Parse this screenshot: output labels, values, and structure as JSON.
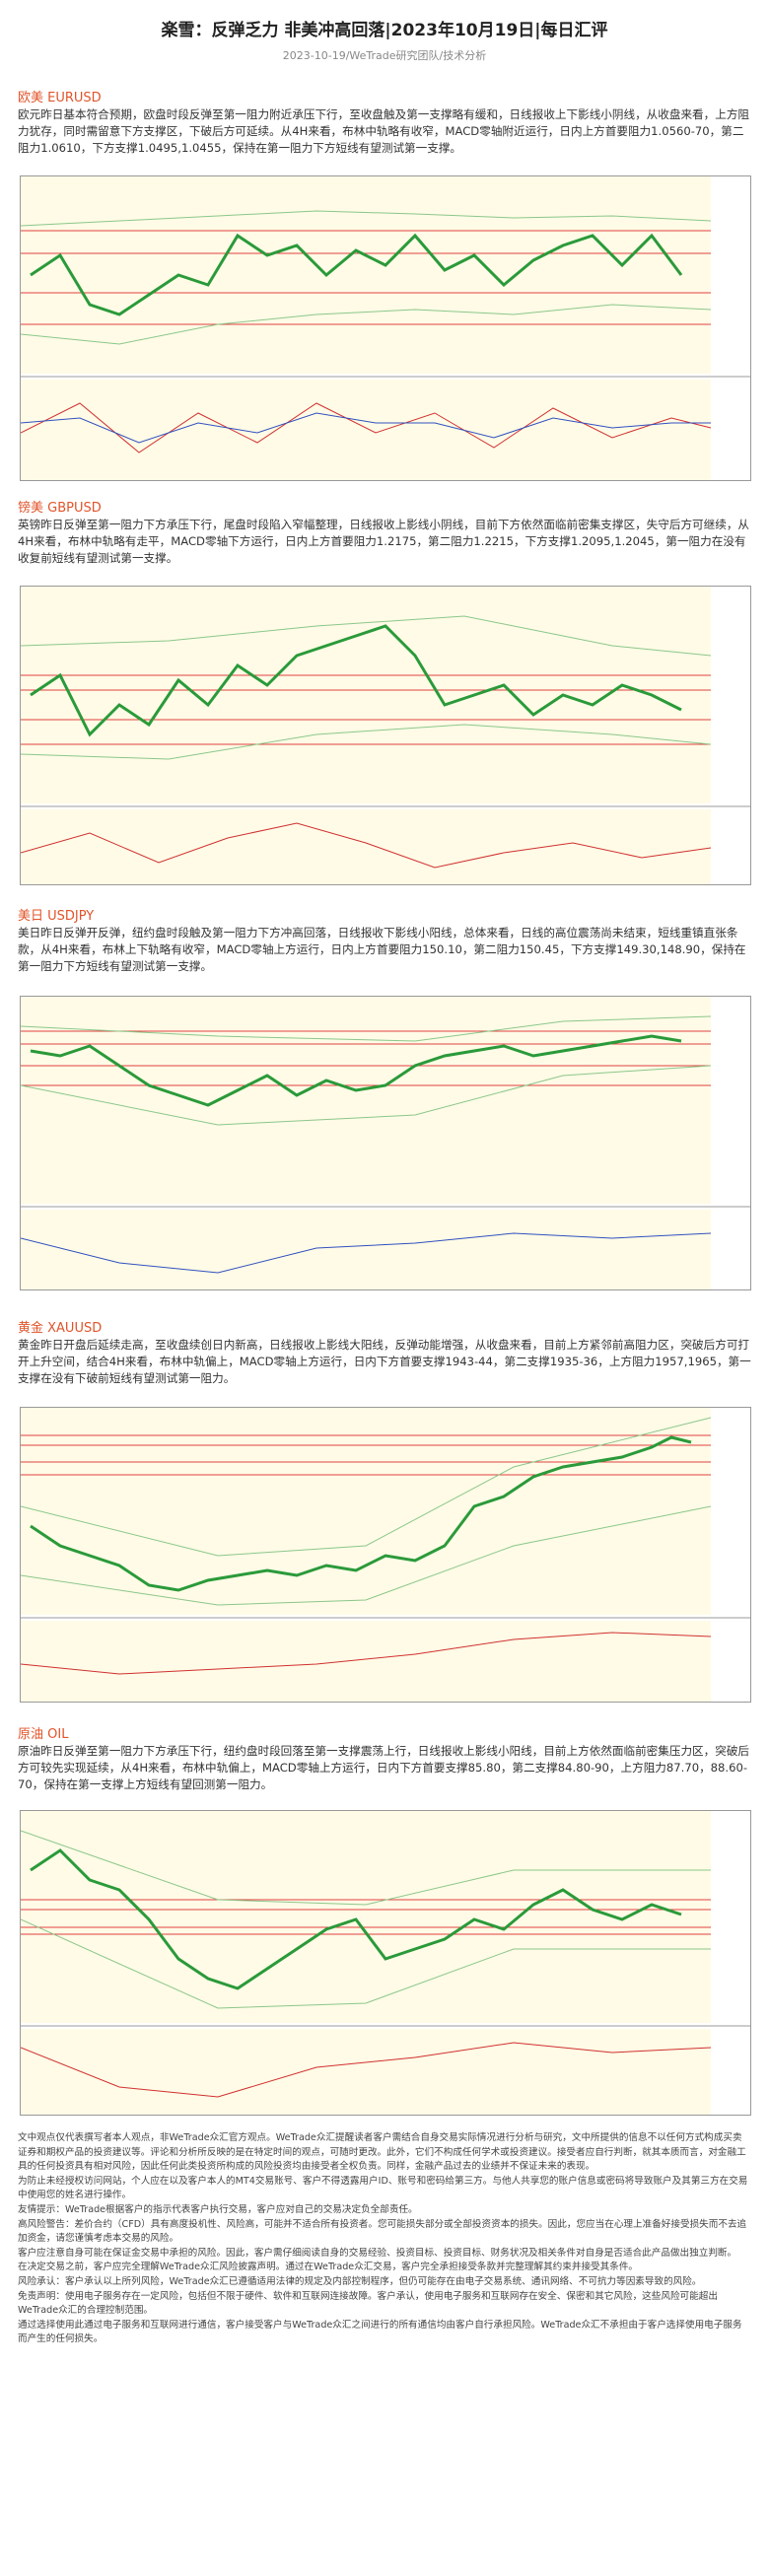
{
  "header": {
    "title": "楽雪：反弹乏力 非美冲高回落|2023年10月19日|每日汇评",
    "subtitle": "2023-10-19/WeTrade研究团队/技术分析"
  },
  "sections": [
    {
      "heading": "欧美 EURUSD",
      "body": "欧元昨日基本符合预期，欧盘时段反弹至第一阻力附近承压下行，至收盘触及第一支撑略有缓和，日线报收上下影线小阴线，从收盘来看，上方阻力犹存，同时需留意下方支撑区，下破后方可延续。从4H来看，布林中轨略有收窄，MACD零轴附近运行，日内上方首要阻力1.0560-70，第二阻力1.0610，下方支撑1.0495,1.0455，保持在第一阻力下方短线有望测试第一支撑。"
    },
    {
      "heading": "镑美 GBPUSD",
      "body": "英镑昨日反弹至第一阻力下方承压下行，尾盘时段陷入窄幅整理，日线报收上影线小阴线，目前下方依然面临前密集支撑区，失守后方可继续，从4H来看，布林中轨略有走平，MACD零轴下方运行，日内上方首要阻力1.2175，第二阻力1.2215，下方支撑1.2095,1.2045，第一阻力在没有收复前短线有望测试第一支撑。"
    },
    {
      "heading": "美日 USDJPY",
      "body": "美日昨日反弹开反弹，纽约盘时段触及第一阻力下方冲高回落，日线报收下影线小阳线，总体来看，日线的高位震荡尚未结束，短线重镇直张条款，从4H来看，布林上下轨略有收窄，MACD零轴上方运行，日内上方首要阻力150.10，第二阻力150.45，下方支撑149.30,148.90，保持在第一阻力下方短线有望测试第一支撑。"
    },
    {
      "heading": "黄金 XAUUSD",
      "body": "黄金昨日开盘后延续走高，至收盘续创日内新高，日线报收上影线大阳线，反弹动能增强，从收盘来看，目前上方紧邻前高阻力区，突破后方可打开上升空间，结合4H来看，布林中轨偏上，MACD零轴上方运行，日内下方首要支撑1943-44，第二支撑1935-36，上方阻力1957,1965，第一支撑在没有下破前短线有望测试第一阻力。"
    },
    {
      "heading": "原油 OIL",
      "body": "原油昨日反弹至第一阻力下方承压下行，纽约盘时段回落至第一支撑震荡上行，日线报收上影线小阳线，目前上方依然面临前密集压力区，突破后方可较先实现延续，从4H来看，布林中轨偏上，MACD零轴上方运行，日内下方首要支撑85.80，第二支撑84.80-90，上方阻力87.70，88.60-70，保持在第一支撑上方短线有望回测第一阻力。"
    }
  ],
  "disclaimer": [
    "文中观点仅代表撰写者本人观点，非WeTrade众汇官方观点。WeTrade众汇提醒读者客户需结合自身交易实际情况进行分析与研究，文中所提供的信息不以任何方式构成买卖证券和期权产品的投资建议等。评论和分析所反映的是在特定时间的观点，可随时更改。此外，它们不构成任何学术或投资建议。接受者应自行判断，就其本质而言，对金融工具的任何投资具有相对风险，因此任何此类投资所构成的风险投资均由接受者全权负责。同样，金融产品过去的业绩并不保证未来的表现。",
    "为防止未经授权访问网站，个人应在以及客户本人的MT4交易账号、客户不得透露用户ID、账号和密码给第三方。与他人共享您的账户信息或密码将导致账户及其第三方在交易中使用您的姓名进行操作。",
    "友情提示：WeTrade根据客户的指示代表客户执行交易，客户应对自己的交易决定负全部责任。",
    "高风险警告：差价合约（CFD）具有高度投机性、风险高，可能并不适合所有投资者。您可能损失部分或全部投资资本的损失。因此，您应当在心理上准备好接受损失而不去追加资金，请您谨慎考虑本交易的风险。",
    "客户应注意自身可能在保证金交易中承担的风险。因此，客户需仔细阅读自身的交易经验、投资目标、投资目标、财务状况及相关条件对自身是否适合此产品做出独立判断。",
    "在决定交易之前，客户应完全理解WeTrade众汇风险披露声明。通过在WeTrade众汇交易，客户完全承担接受条款并完整理解其约束并接受其条件。",
    "风险承认：客户承认以上所列风险，WeTrade众汇已遵循适用法律的规定及内部控制程序，但仍可能存在由电子交易系统、通讯网络、不可抗力等因素导致的风险。",
    "免责声明：使用电子服务存在一定风险，包括但不限于硬件、软件和互联网连接故障。客户承认，使用电子服务和互联网存在安全、保密和其它风险，这些风险可能超出WeTrade众汇的合理控制范围。",
    "通过选择使用此通过电子服务和互联网进行通信，客户接受客户与WeTrade众汇之间进行的所有通信均由客户自行承担风险。WeTrade众汇不承担由于客户选择使用电子服务而产生的任何损失。"
  ]
}
